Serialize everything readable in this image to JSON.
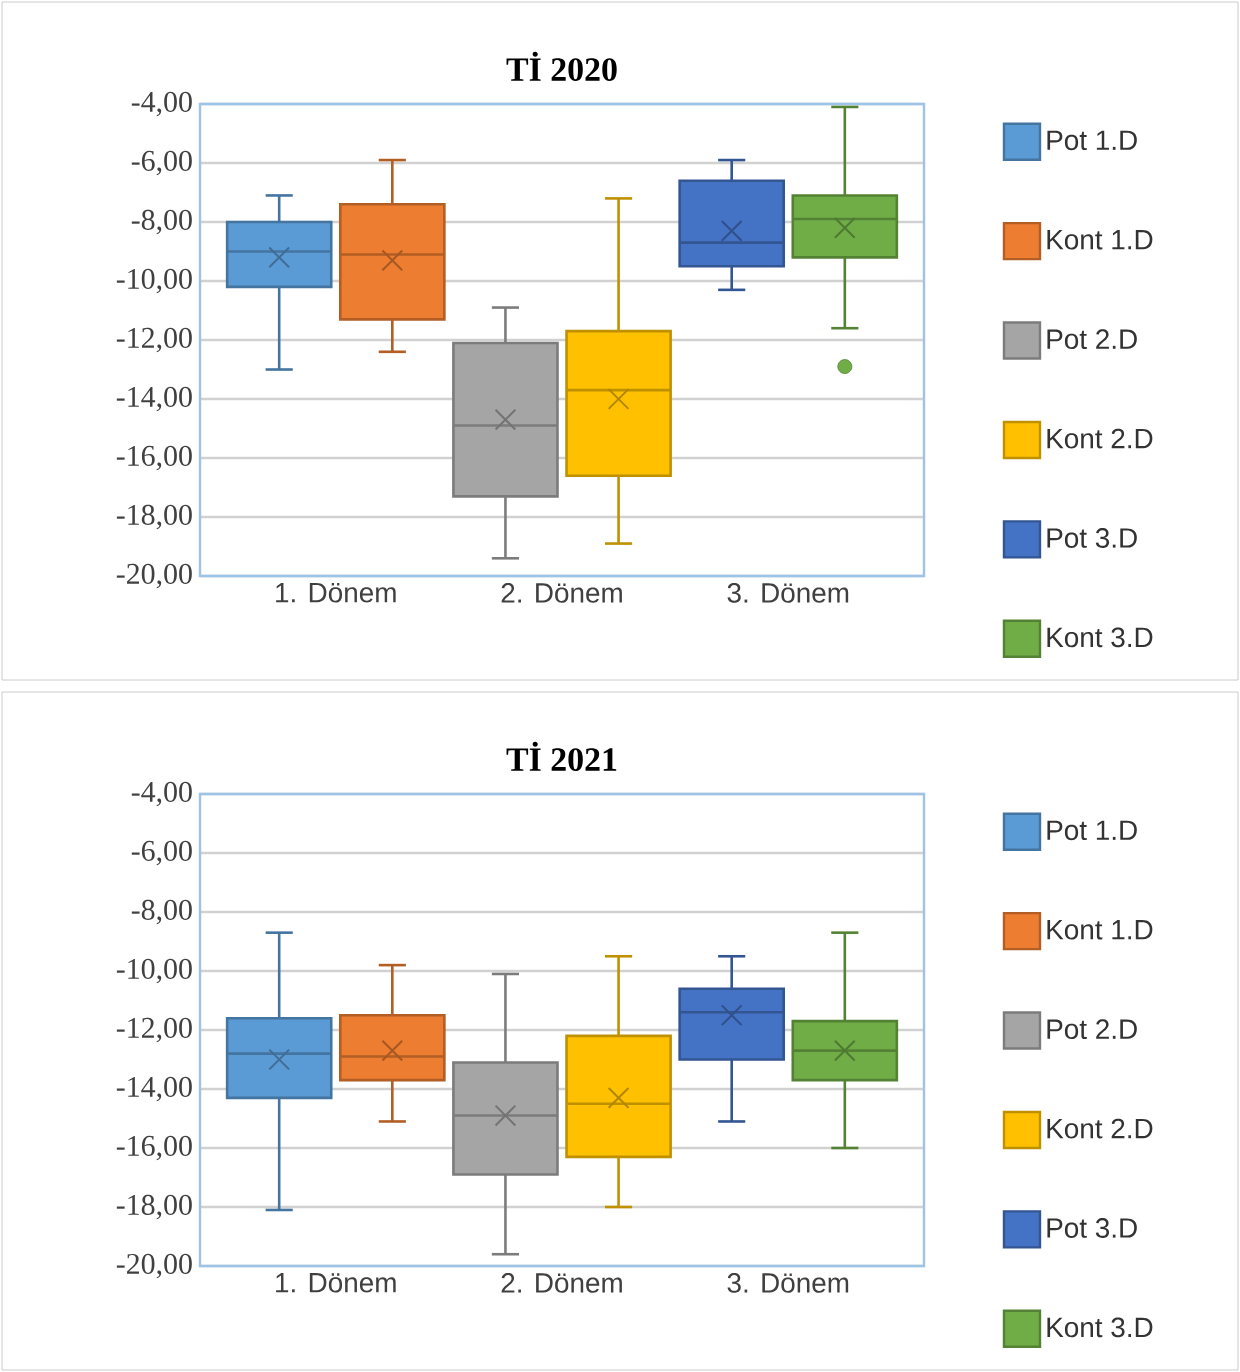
{
  "chart_data": [
    {
      "type": "box",
      "title": "Tİ 2020",
      "categories": [
        "1. Dönem",
        "2. Dönem",
        "3. Dönem"
      ],
      "ylim": [
        -20,
        -4
      ],
      "yticks": [
        {
          "value": -4,
          "label": "-4,00"
        },
        {
          "value": -6,
          "label": "-6,00"
        },
        {
          "value": -8,
          "label": "-8,00"
        },
        {
          "value": -10,
          "label": "-10,00"
        },
        {
          "value": -12,
          "label": "-12,00"
        },
        {
          "value": -14,
          "label": "-14,00"
        },
        {
          "value": -16,
          "label": "-16,00"
        },
        {
          "value": -18,
          "label": "-18,00"
        },
        {
          "value": -20,
          "label": "-20,00"
        }
      ],
      "grid": "y",
      "legend": "right",
      "marker": "cross",
      "series": [
        {
          "name": "Pot 1.D",
          "color": "#5b9bd5",
          "boxes": [
            {
              "low": -13.0,
              "q1": -10.2,
              "median": -9.0,
              "q3": -8.0,
              "high": -7.1,
              "mean": -9.2
            },
            null,
            null
          ]
        },
        {
          "name": "Kont 1.D",
          "color": "#ed7d31",
          "boxes": [
            {
              "low": -12.4,
              "q1": -11.3,
              "median": -9.1,
              "q3": -7.4,
              "high": -5.9,
              "mean": -9.3
            },
            null,
            null
          ]
        },
        {
          "name": "Pot 2.D",
          "color": "#a5a5a5",
          "boxes": [
            null,
            {
              "low": -19.4,
              "q1": -17.3,
              "median": -14.9,
              "q3": -12.1,
              "high": -10.9,
              "mean": -14.7
            },
            null
          ]
        },
        {
          "name": "Kont 2.D",
          "color": "#ffc000",
          "boxes": [
            null,
            {
              "low": -18.9,
              "q1": -16.6,
              "median": -13.7,
              "q3": -11.7,
              "high": -7.2,
              "mean": -14.0
            },
            null
          ]
        },
        {
          "name": "Pot 3.D",
          "color": "#4472c4",
          "boxes": [
            null,
            null,
            {
              "low": -10.3,
              "q1": -9.5,
              "median": -8.7,
              "q3": -6.6,
              "high": -5.9,
              "mean": -8.3
            }
          ]
        },
        {
          "name": "Kont 3.D",
          "color": "#70ad47",
          "boxes": [
            null,
            null,
            {
              "low": -11.6,
              "q1": -9.2,
              "median": -7.9,
              "q3": -7.1,
              "high": -4.1,
              "mean": -8.2,
              "outliers": [
                -12.9
              ]
            }
          ]
        }
      ]
    },
    {
      "type": "box",
      "title": "Tİ 2021",
      "categories": [
        "1. Dönem",
        "2. Dönem",
        "3. Dönem"
      ],
      "ylim": [
        -20,
        -4
      ],
      "yticks": [
        {
          "value": -4,
          "label": "-4,00"
        },
        {
          "value": -6,
          "label": "-6,00"
        },
        {
          "value": -8,
          "label": "-8,00"
        },
        {
          "value": -10,
          "label": "-10,00"
        },
        {
          "value": -12,
          "label": "-12,00"
        },
        {
          "value": -14,
          "label": "-14,00"
        },
        {
          "value": -16,
          "label": "-16,00"
        },
        {
          "value": -18,
          "label": "-18,00"
        },
        {
          "value": -20,
          "label": "-20,00"
        }
      ],
      "grid": "y",
      "legend": "right",
      "marker": "cross",
      "series": [
        {
          "name": "Pot 1.D",
          "color": "#5b9bd5",
          "boxes": [
            {
              "low": -18.1,
              "q1": -14.3,
              "median": -12.8,
              "q3": -11.6,
              "high": -8.7,
              "mean": -13.0
            },
            null,
            null
          ]
        },
        {
          "name": "Kont 1.D",
          "color": "#ed7d31",
          "boxes": [
            {
              "low": -15.1,
              "q1": -13.7,
              "median": -12.9,
              "q3": -11.5,
              "high": -9.8,
              "mean": -12.7
            },
            null,
            null
          ]
        },
        {
          "name": "Pot 2.D",
          "color": "#a5a5a5",
          "boxes": [
            null,
            {
              "low": -19.6,
              "q1": -16.9,
              "median": -14.9,
              "q3": -13.1,
              "high": -10.1,
              "mean": -14.9
            },
            null
          ]
        },
        {
          "name": "Kont 2.D",
          "color": "#ffc000",
          "boxes": [
            null,
            {
              "low": -18.0,
              "q1": -16.3,
              "median": -14.5,
              "q3": -12.2,
              "high": -9.5,
              "mean": -14.3
            },
            null
          ]
        },
        {
          "name": "Pot 3.D",
          "color": "#4472c4",
          "boxes": [
            null,
            null,
            {
              "low": -15.1,
              "q1": -13.0,
              "median": -11.4,
              "q3": -10.6,
              "high": -9.5,
              "mean": -11.5
            }
          ]
        },
        {
          "name": "Kont 3.D",
          "color": "#70ad47",
          "boxes": [
            null,
            null,
            {
              "low": -16.0,
              "q1": -13.7,
              "median": -12.7,
              "q3": -11.7,
              "high": -8.7,
              "mean": -12.7
            }
          ]
        }
      ]
    }
  ]
}
